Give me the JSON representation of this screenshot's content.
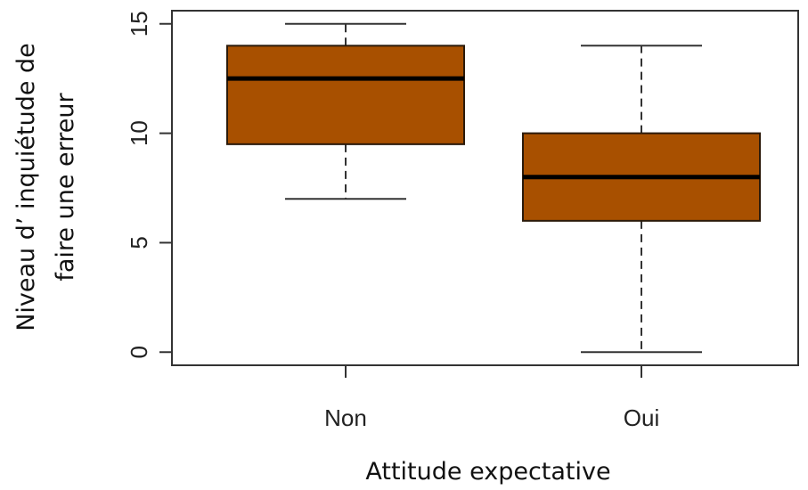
{
  "chart_data": {
    "type": "boxplot",
    "title": "",
    "xlabel": "Attitude expectative",
    "ylabel_lines": [
      "Niveau d’   inquiétude de",
      "faire une erreur"
    ],
    "categories": [
      "Non",
      "Oui"
    ],
    "boxes": [
      {
        "category": "Non",
        "min": 7,
        "q1": 9.5,
        "median": 12.5,
        "q3": 14,
        "max": 15
      },
      {
        "category": "Oui",
        "min": 0,
        "q1": 6,
        "median": 8,
        "q3": 10,
        "max": 14
      }
    ],
    "yticks": [
      0,
      5,
      10,
      15
    ],
    "ylim": [
      -0.6,
      15.6
    ],
    "grid": false,
    "legend": "none",
    "colors": {
      "box_fill": "#a85000",
      "box_stroke": "#2b1a0a",
      "median": "#000000",
      "whisker": "#333333",
      "axis": "#333333"
    }
  }
}
